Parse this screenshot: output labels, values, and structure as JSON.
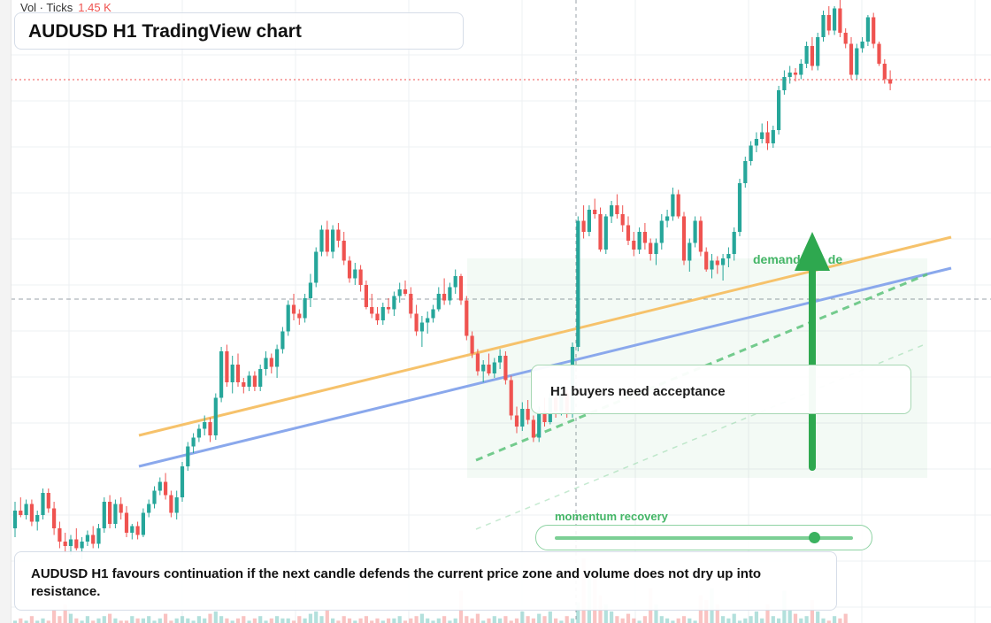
{
  "header": {
    "title": "AUDUSD H1 TradingView chart",
    "volume_legend": "Vol · Ticks",
    "volume_value": "1.45 K"
  },
  "annotations": {
    "demand_label": "demand        de",
    "note": "H1 buyers need acceptance",
    "momentum_label": "momentum recovery",
    "momentum_level": 0.87,
    "caption": "AUDUSD H1 favours continuation if the next candle defends the current price zone and volume does not dry up into resistance."
  },
  "colors": {
    "up": "#26a69a",
    "down": "#ef5350",
    "orange_line": "#f6c26b",
    "blue_line": "#8aa8ec",
    "green": "#2ea84f"
  },
  "chart_data": {
    "type": "candlestick",
    "title": "AUDUSD H1 TradingView chart",
    "xlabel": "",
    "ylabel": "",
    "grid": true,
    "price_range": [
      0,
      100
    ],
    "series": [
      {
        "values": [
          [
            3.0,
            9.0,
            1.0,
            7.0
          ],
          [
            7.0,
            10.0,
            5.5,
            6.0
          ],
          [
            6.0,
            9.5,
            5.0,
            8.5
          ],
          [
            8.5,
            9.5,
            3.5,
            4.5
          ],
          [
            4.5,
            7.0,
            2.5,
            6.0
          ],
          [
            6.0,
            12.0,
            5.0,
            11.0
          ],
          [
            11.0,
            12.0,
            6.5,
            7.5
          ],
          [
            7.5,
            9.0,
            1.5,
            3.0
          ],
          [
            3.0,
            4.5,
            -1.5,
            0.0
          ],
          [
            0.0,
            2.0,
            -2.5,
            -1.0
          ],
          [
            -1.0,
            1.5,
            -3.0,
            0.5
          ],
          [
            0.5,
            3.0,
            -2.0,
            -1.5
          ],
          [
            -1.5,
            1.0,
            -4.0,
            0.0
          ],
          [
            0.0,
            2.5,
            -1.0,
            1.5
          ],
          [
            1.5,
            3.5,
            -1.5,
            -0.5
          ],
          [
            -0.5,
            4.0,
            -1.5,
            3.0
          ],
          [
            3.0,
            10.0,
            2.0,
            9.0
          ],
          [
            9.0,
            10.5,
            3.0,
            4.0
          ],
          [
            4.0,
            9.5,
            3.0,
            8.5
          ],
          [
            8.5,
            10.0,
            5.0,
            6.5
          ],
          [
            6.5,
            8.0,
            1.0,
            2.0
          ],
          [
            2.0,
            4.0,
            0.5,
            3.5
          ],
          [
            3.5,
            4.5,
            0.5,
            1.5
          ],
          [
            1.5,
            7.5,
            1.0,
            6.5
          ],
          [
            6.5,
            9.5,
            5.5,
            8.5
          ],
          [
            8.5,
            12.5,
            7.5,
            11.5
          ],
          [
            11.5,
            14.5,
            10.5,
            13.5
          ],
          [
            13.5,
            15.5,
            9.5,
            10.5
          ],
          [
            10.5,
            11.5,
            5.5,
            6.5
          ],
          [
            6.5,
            11.5,
            5.0,
            10.0
          ],
          [
            10.0,
            18.0,
            9.0,
            17.0
          ],
          [
            17.0,
            22.5,
            16.0,
            21.5
          ],
          [
            21.5,
            24.5,
            20.0,
            23.5
          ],
          [
            23.5,
            26.5,
            22.5,
            25.5
          ],
          [
            25.5,
            28.5,
            24.0,
            27.0
          ],
          [
            27.0,
            28.0,
            22.5,
            24.0
          ],
          [
            24.0,
            33.5,
            23.0,
            32.5
          ],
          [
            32.5,
            44.0,
            31.5,
            43.0
          ],
          [
            43.0,
            44.5,
            35.0,
            36.0
          ],
          [
            36.0,
            42.0,
            33.5,
            40.0
          ],
          [
            40.0,
            42.5,
            35.0,
            36.0
          ],
          [
            36.0,
            37.0,
            33.5,
            35.0
          ],
          [
            35.0,
            38.5,
            34.0,
            37.5
          ],
          [
            37.5,
            38.5,
            34.0,
            35.0
          ],
          [
            35.0,
            40.0,
            34.0,
            39.0
          ],
          [
            39.0,
            43.0,
            37.5,
            41.5
          ],
          [
            41.5,
            42.5,
            38.0,
            39.5
          ],
          [
            39.5,
            44.5,
            37.0,
            43.5
          ],
          [
            43.5,
            48.5,
            42.5,
            47.5
          ],
          [
            47.5,
            54.5,
            46.5,
            53.5
          ],
          [
            53.5,
            56.0,
            50.0,
            51.5
          ],
          [
            51.5,
            52.5,
            49.0,
            50.5
          ],
          [
            50.5,
            56.0,
            49.5,
            55.0
          ],
          [
            55.0,
            60.5,
            53.0,
            58.5
          ],
          [
            58.5,
            66.5,
            57.5,
            65.5
          ],
          [
            65.5,
            71.5,
            64.5,
            70.5
          ],
          [
            70.5,
            72.5,
            64.5,
            65.5
          ],
          [
            65.5,
            71.5,
            64.0,
            70.5
          ],
          [
            70.5,
            72.0,
            66.5,
            68.0
          ],
          [
            68.0,
            70.0,
            62.5,
            63.5
          ],
          [
            63.5,
            64.5,
            58.5,
            59.5
          ],
          [
            59.5,
            63.0,
            58.0,
            61.5
          ],
          [
            61.5,
            62.5,
            56.5,
            58.0
          ],
          [
            58.0,
            59.0,
            52.5,
            53.0
          ],
          [
            53.0,
            56.0,
            50.5,
            51.5
          ],
          [
            51.5,
            53.0,
            49.0,
            50.0
          ],
          [
            50.0,
            54.0,
            49.0,
            53.0
          ],
          [
            53.0,
            55.0,
            51.5,
            52.5
          ],
          [
            52.5,
            56.5,
            51.0,
            55.5
          ],
          [
            55.5,
            58.5,
            54.0,
            57.0
          ],
          [
            57.0,
            59.0,
            55.5,
            56.0
          ],
          [
            56.0,
            57.5,
            50.5,
            51.5
          ],
          [
            51.5,
            53.5,
            46.5,
            47.5
          ],
          [
            47.5,
            51.0,
            44.0,
            49.5
          ],
          [
            49.5,
            52.0,
            47.0,
            50.5
          ],
          [
            50.5,
            53.5,
            49.5,
            52.5
          ],
          [
            52.5,
            57.5,
            52.0,
            56.0
          ],
          [
            56.0,
            59.5,
            53.5,
            54.5
          ],
          [
            54.5,
            58.5,
            53.5,
            57.5
          ],
          [
            57.5,
            61.5,
            56.0,
            60.0
          ],
          [
            60.0,
            60.5,
            53.5,
            54.5
          ],
          [
            54.5,
            55.5,
            45.5,
            46.5
          ],
          [
            46.5,
            47.5,
            41.5,
            42.5
          ],
          [
            42.5,
            43.5,
            37.5,
            38.5
          ],
          [
            38.5,
            41.0,
            36.0,
            40.0
          ],
          [
            40.0,
            42.5,
            37.5,
            38.0
          ],
          [
            38.0,
            41.5,
            37.0,
            40.5
          ],
          [
            40.5,
            43.5,
            39.0,
            42.0
          ],
          [
            42.0,
            43.0,
            35.5,
            36.5
          ],
          [
            36.5,
            37.5,
            27.5,
            28.5
          ],
          [
            28.5,
            30.5,
            24.5,
            26.0
          ],
          [
            26.0,
            31.5,
            25.0,
            30.0
          ],
          [
            30.0,
            32.0,
            26.5,
            27.5
          ],
          [
            27.5,
            28.5,
            22.5,
            23.5
          ],
          [
            23.5,
            30.5,
            22.5,
            29.5
          ],
          [
            29.5,
            32.5,
            26.0,
            27.0
          ],
          [
            27.0,
            33.5,
            26.5,
            32.5
          ],
          [
            32.5,
            34.5,
            28.0,
            29.5
          ],
          [
            29.5,
            35.5,
            28.5,
            33.5
          ],
          [
            33.5,
            34.5,
            28.0,
            29.0
          ],
          [
            29.0,
            45.0,
            28.0,
            44.0
          ],
          [
            44.0,
            73.5,
            43.0,
            72.5
          ],
          [
            72.5,
            76.0,
            68.5,
            70.0
          ],
          [
            70.0,
            76.0,
            69.0,
            75.0
          ],
          [
            75.0,
            77.5,
            73.0,
            74.0
          ],
          [
            74.0,
            75.5,
            65.5,
            66.0
          ],
          [
            66.0,
            74.0,
            65.0,
            73.5
          ],
          [
            73.5,
            77.0,
            72.0,
            76.0
          ],
          [
            76.0,
            78.5,
            73.0,
            74.0
          ],
          [
            74.0,
            76.0,
            70.0,
            71.5
          ],
          [
            71.5,
            73.5,
            67.0,
            68.0
          ],
          [
            68.0,
            70.0,
            64.5,
            66.0
          ],
          [
            66.0,
            71.0,
            65.0,
            70.0
          ],
          [
            70.0,
            72.0,
            66.0,
            67.5
          ],
          [
            67.5,
            68.5,
            63.5,
            65.0
          ],
          [
            65.0,
            68.5,
            62.5,
            67.5
          ],
          [
            67.5,
            74.0,
            66.0,
            72.5
          ],
          [
            72.5,
            75.0,
            71.0,
            73.5
          ],
          [
            73.5,
            80.0,
            72.5,
            78.5
          ],
          [
            78.5,
            79.5,
            73.0,
            73.5
          ],
          [
            73.5,
            74.5,
            62.5,
            63.5
          ],
          [
            63.5,
            68.5,
            61.0,
            67.5
          ],
          [
            67.5,
            73.5,
            66.5,
            72.5
          ],
          [
            72.5,
            73.5,
            64.5,
            65.5
          ],
          [
            65.5,
            66.5,
            61.0,
            61.5
          ],
          [
            61.5,
            65.0,
            59.5,
            63.5
          ],
          [
            63.5,
            64.5,
            60.5,
            62.5
          ],
          [
            62.5,
            65.0,
            59.0,
            64.0
          ],
          [
            64.0,
            66.5,
            62.0,
            65.0
          ],
          [
            65.0,
            71.0,
            63.5,
            70.0
          ],
          [
            70.0,
            82.0,
            69.0,
            81.0
          ],
          [
            81.0,
            87.0,
            80.0,
            86.0
          ],
          [
            86.0,
            90.5,
            85.0,
            89.5
          ],
          [
            89.5,
            92.5,
            88.0,
            91.0
          ],
          [
            91.0,
            94.5,
            90.0,
            92.5
          ],
          [
            92.5,
            95.0,
            88.5,
            90.0
          ],
          [
            90.0,
            94.0,
            89.0,
            93.0
          ],
          [
            93.0,
            103.0,
            92.0,
            102.0
          ],
          [
            102.0,
            106.5,
            101.0,
            105.0
          ],
          [
            105.0,
            107.5,
            103.5,
            106.0
          ],
          [
            106.0,
            107.0,
            104.0,
            105.5
          ],
          [
            105.5,
            109.0,
            104.5,
            108.0
          ],
          [
            108.0,
            113.0,
            107.0,
            112.0
          ],
          [
            112.0,
            114.0,
            106.5,
            107.5
          ],
          [
            107.5,
            115.0,
            106.5,
            114.0
          ],
          [
            114.0,
            120.0,
            113.0,
            119.0
          ],
          [
            119.0,
            121.0,
            114.5,
            115.5
          ],
          [
            115.5,
            121.0,
            114.5,
            120.5
          ],
          [
            120.5,
            122.5,
            114.0,
            115.0
          ],
          [
            115.0,
            116.0,
            111.5,
            112.5
          ],
          [
            112.5,
            114.0,
            104.5,
            105.5
          ],
          [
            105.5,
            112.5,
            104.5,
            111.5
          ],
          [
            111.5,
            114.0,
            110.5,
            113.0
          ],
          [
            113.0,
            119.0,
            112.0,
            118.5
          ],
          [
            118.5,
            119.5,
            111.5,
            112.5
          ],
          [
            112.5,
            113.0,
            107.5,
            108.0
          ],
          [
            108.0,
            109.0,
            103.5,
            104.5
          ],
          [
            104.5,
            106.5,
            102.0,
            103.5
          ]
        ]
      },
      {
        "values": [
          1,
          2,
          1,
          3,
          1,
          2,
          1,
          6,
          3,
          8,
          4,
          2,
          1,
          3,
          1,
          2,
          3,
          4,
          2,
          1,
          1,
          3,
          2,
          2,
          3,
          1,
          2,
          4,
          1,
          2,
          3,
          2,
          1,
          3,
          2,
          4,
          5,
          3,
          2,
          1,
          2,
          3,
          1,
          2,
          3,
          1,
          2,
          3,
          2,
          2,
          1,
          3,
          2,
          4,
          5,
          3,
          6,
          2,
          1,
          3,
          2,
          1,
          2,
          3,
          1,
          2,
          1,
          2,
          2,
          3,
          1,
          2,
          3,
          4,
          2,
          1,
          2,
          3,
          1,
          2,
          14,
          3,
          2,
          4,
          1,
          2,
          3,
          2,
          3,
          1,
          2,
          5,
          3,
          2,
          4,
          3,
          5,
          2,
          1,
          3,
          2,
          9,
          28,
          22,
          20,
          12,
          8,
          5,
          3,
          2,
          4,
          2,
          1,
          3,
          15,
          8,
          3,
          2,
          1,
          2,
          3,
          2,
          1,
          12,
          10,
          15,
          8,
          3,
          2,
          4,
          1,
          2,
          3,
          5,
          2,
          8,
          3,
          2,
          14,
          6,
          4,
          2,
          3,
          10,
          5,
          2,
          1,
          3,
          2,
          4
        ]
      }
    ],
    "trendlines": [
      "orange_resistance",
      "blue_support",
      "green_dashed_support"
    ],
    "annotations": [
      "demand        de",
      "H1 buyers need acceptance",
      "momentum recovery"
    ]
  }
}
